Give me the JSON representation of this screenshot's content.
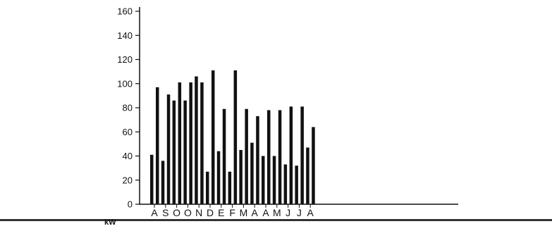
{
  "chart_data": {
    "type": "bar",
    "categories": [
      "A",
      "S",
      "O",
      "O",
      "N",
      "D",
      "E",
      "F",
      "M",
      "A",
      "A",
      "M",
      "J",
      "J",
      "A"
    ],
    "series": [
      {
        "values": [
          41,
          36,
          86,
          86,
          106,
          27,
          44,
          27,
          45,
          51,
          40,
          40,
          33,
          32,
          47
        ]
      },
      {
        "values": [
          97,
          91,
          101,
          101,
          101,
          111,
          79,
          111,
          79,
          73,
          78,
          78,
          81,
          81,
          64
        ]
      }
    ],
    "yticks": [
      "0",
      "20",
      "40",
      "60",
      "80",
      "100",
      "120",
      "140",
      "160"
    ],
    "ylim": [
      0,
      160
    ],
    "unit_label": "kW",
    "grid": false,
    "colors": {
      "bars": "#111111",
      "axis": "#111111",
      "baseline_band": "#333333"
    }
  }
}
